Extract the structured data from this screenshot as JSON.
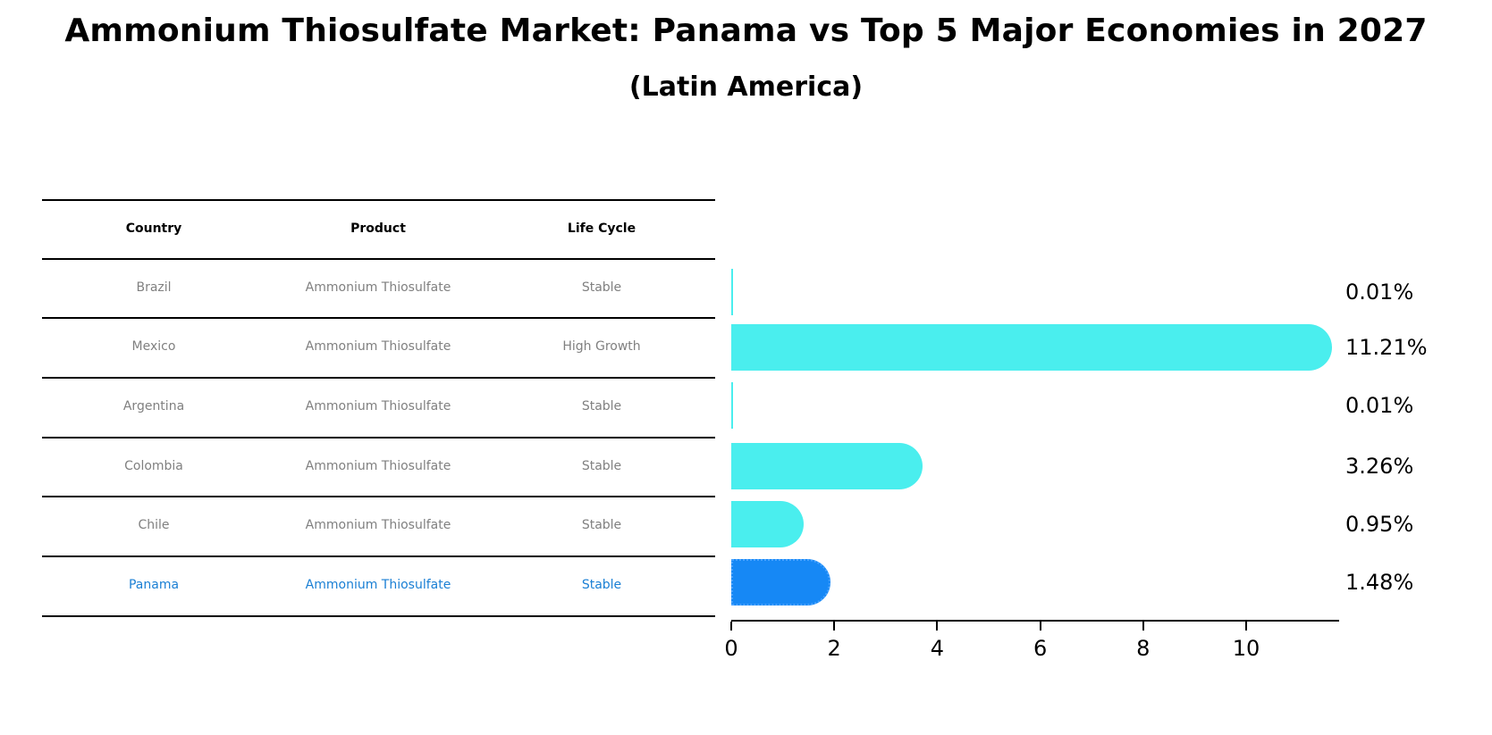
{
  "title": "Ammonium Thiosulfate Market: Panama vs Top 5 Major Economies in 2027",
  "subtitle": "(Latin America)",
  "table": {
    "headers": [
      "Country",
      "Product",
      "Life Cycle"
    ],
    "rows": [
      {
        "country": "Brazil",
        "product": "Ammonium Thiosulfate",
        "life_cycle": "Stable",
        "highlight": false
      },
      {
        "country": "Mexico",
        "product": "Ammonium Thiosulfate",
        "life_cycle": "High Growth",
        "highlight": false
      },
      {
        "country": "Argentina",
        "product": "Ammonium Thiosulfate",
        "life_cycle": "Stable",
        "highlight": false
      },
      {
        "country": "Colombia",
        "product": "Ammonium Thiosulfate",
        "life_cycle": "Stable",
        "highlight": false
      },
      {
        "country": "Chile",
        "product": "Ammonium Thiosulfate",
        "life_cycle": "Stable",
        "highlight": false
      },
      {
        "country": "Panama",
        "product": "Ammonium Thiosulfate",
        "life_cycle": "Stable",
        "highlight": true
      }
    ]
  },
  "colors": {
    "bar": "#4aeeee",
    "highlight_bar": "#1688f5",
    "highlight_text": "#1a7fd4",
    "row_text": "#808080"
  },
  "chart_data": {
    "type": "bar",
    "orientation": "horizontal",
    "title": "Ammonium Thiosulfate Market: Panama vs Top 5 Major Economies in 2027",
    "subtitle": "(Latin America)",
    "categories": [
      "Brazil",
      "Mexico",
      "Argentina",
      "Colombia",
      "Chile",
      "Panama"
    ],
    "values": [
      0.01,
      11.21,
      0.01,
      3.26,
      0.95,
      1.48
    ],
    "value_labels": [
      "0.01%",
      "11.21%",
      "0.01%",
      "3.26%",
      "0.95%",
      "1.48%"
    ],
    "highlight": "Panama",
    "xlabel": "",
    "ylabel": "",
    "xticks": [
      0,
      2,
      4,
      6,
      8,
      10
    ],
    "xlim": [
      0,
      11.8
    ],
    "grid": false,
    "legend": null
  }
}
